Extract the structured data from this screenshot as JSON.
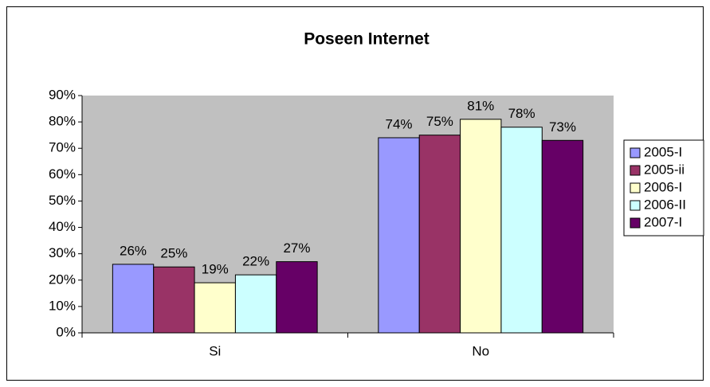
{
  "chart_data": {
    "type": "bar",
    "title": "Poseen Internet",
    "categories": [
      "Si",
      "No"
    ],
    "series": [
      {
        "name": "2005-I",
        "color": "#9999ff",
        "values": [
          26,
          74
        ],
        "value_labels": [
          "26%",
          "74%"
        ]
      },
      {
        "name": "2005-ii",
        "color": "#993366",
        "values": [
          25,
          75
        ],
        "value_labels": [
          "25%",
          "75%"
        ]
      },
      {
        "name": "2006-I",
        "color": "#ffffcc",
        "values": [
          19,
          81
        ],
        "value_labels": [
          "19%",
          "81%"
        ]
      },
      {
        "name": "2006-II",
        "color": "#ccffff",
        "values": [
          22,
          78
        ],
        "value_labels": [
          "22%",
          "78%"
        ]
      },
      {
        "name": "2007-I",
        "color": "#660066",
        "values": [
          27,
          73
        ],
        "value_labels": [
          "27%",
          "73%"
        ]
      }
    ],
    "ylim": [
      0,
      90
    ],
    "yticks": [
      {
        "value": 0,
        "label": "0%"
      },
      {
        "value": 10,
        "label": "10%"
      },
      {
        "value": 20,
        "label": "20%"
      },
      {
        "value": 30,
        "label": "30%"
      },
      {
        "value": 40,
        "label": "40%"
      },
      {
        "value": 50,
        "label": "50%"
      },
      {
        "value": 60,
        "label": "60%"
      },
      {
        "value": 70,
        "label": "70%"
      },
      {
        "value": 80,
        "label": "80%"
      },
      {
        "value": 90,
        "label": "90%"
      }
    ],
    "grid": false,
    "legend": "right",
    "plot_background": "#c0c0c0"
  }
}
